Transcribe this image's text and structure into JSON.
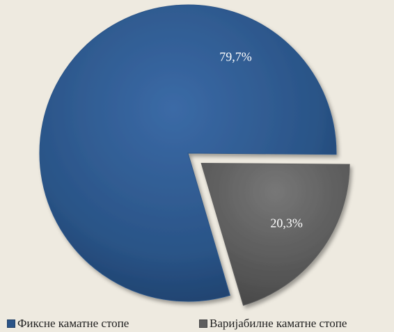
{
  "chart_data": {
    "type": "pie",
    "slices": [
      {
        "label": "Фиксне каматне стопе",
        "value": 79.7,
        "display": "79,7%",
        "color": "#2B5488",
        "exploded": false
      },
      {
        "label": "Варијабилне каматне стопе",
        "value": 20.3,
        "display": "20,3%",
        "color": "#5E5E5E",
        "exploded": true
      }
    ],
    "legend_position": "bottom"
  }
}
